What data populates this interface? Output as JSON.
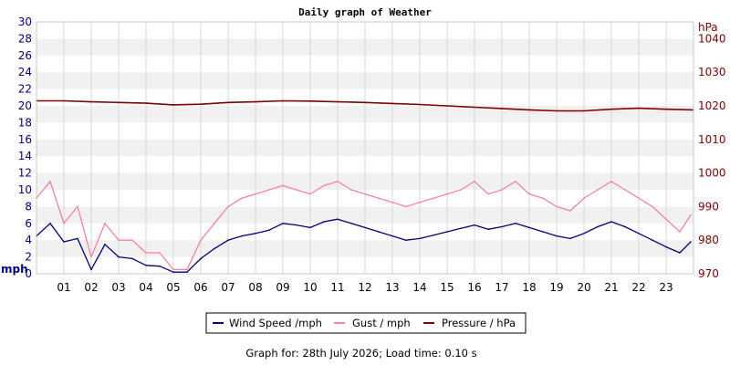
{
  "chart_data": {
    "type": "line",
    "title": "Daily graph of Weather",
    "footer": "Graph for: 28th July 2026; Load time: 0.10 s",
    "y_left": {
      "label": "mph",
      "range": [
        0,
        30
      ],
      "ticks": [
        0,
        2,
        4,
        6,
        8,
        10,
        12,
        14,
        16,
        18,
        20,
        22,
        24,
        26,
        28,
        30
      ]
    },
    "y_right": {
      "label": "hPa",
      "range": [
        970,
        1045
      ],
      "ticks": [
        970,
        980,
        990,
        1000,
        1010,
        1020,
        1030,
        1040
      ]
    },
    "x": {
      "range": [
        0,
        24
      ],
      "ticks": [
        "01",
        "02",
        "03",
        "04",
        "05",
        "06",
        "07",
        "08",
        "09",
        "10",
        "11",
        "12",
        "13",
        "14",
        "15",
        "16",
        "17",
        "18",
        "19",
        "20",
        "21",
        "22",
        "23"
      ]
    },
    "grid": true,
    "legend_position": "bottom",
    "colors": {
      "wind": "#000080",
      "gust": "#f77fa8",
      "pressure": "#800000",
      "left_axis": "#000080",
      "right_axis": "#800000",
      "band": "#f1f1f1"
    },
    "series": [
      {
        "name": "Wind Speed /mph",
        "axis": "left",
        "x": [
          0,
          0.5,
          1,
          1.5,
          2,
          2.5,
          3,
          3.5,
          4,
          4.5,
          5,
          5.5,
          6,
          6.5,
          7,
          7.5,
          8,
          8.5,
          9,
          9.5,
          10,
          10.5,
          11,
          11.5,
          12,
          12.5,
          13,
          13.5,
          14,
          14.5,
          15,
          15.5,
          16,
          16.5,
          17,
          17.5,
          18,
          18.5,
          19,
          19.5,
          20,
          20.5,
          21,
          21.5,
          22,
          22.5,
          23,
          23.5,
          23.9
        ],
        "values": [
          4.5,
          6,
          3.8,
          4.2,
          0.5,
          3.5,
          2,
          1.8,
          1,
          0.9,
          0.2,
          0.2,
          1.8,
          3,
          4,
          4.5,
          4.8,
          5.2,
          6,
          5.8,
          5.5,
          6.2,
          6.5,
          6,
          5.5,
          5,
          4.5,
          4,
          4.2,
          4.6,
          5,
          5.4,
          5.8,
          5.3,
          5.6,
          6,
          5.5,
          5,
          4.5,
          4.2,
          4.8,
          5.6,
          6.2,
          5.6,
          4.8,
          4,
          3.2,
          2.5,
          3.8
        ]
      },
      {
        "name": "Gust / mph",
        "axis": "left",
        "x": [
          0,
          0.5,
          1,
          1.5,
          2,
          2.5,
          3,
          3.5,
          4,
          4.5,
          5,
          5.5,
          6,
          6.5,
          7,
          7.5,
          8,
          8.5,
          9,
          9.5,
          10,
          10.5,
          11,
          11.5,
          12,
          12.5,
          13,
          13.5,
          14,
          14.5,
          15,
          15.5,
          16,
          16.5,
          17,
          17.5,
          18,
          18.5,
          19,
          19.5,
          20,
          20.5,
          21,
          21.5,
          22,
          22.5,
          23,
          23.5,
          23.9
        ],
        "values": [
          9,
          11,
          6,
          8,
          2,
          6,
          4,
          4,
          2.5,
          2.5,
          0.5,
          0.5,
          4,
          6,
          8,
          9,
          9.5,
          10,
          10.5,
          10,
          9.5,
          10.5,
          11,
          10,
          9.5,
          9,
          8.5,
          8,
          8.5,
          9,
          9.5,
          10,
          11,
          9.5,
          10,
          11,
          9.5,
          9,
          8,
          7.5,
          9,
          10,
          11,
          10,
          9,
          8,
          6.5,
          5,
          7
        ]
      },
      {
        "name": "Pressure / hPa",
        "axis": "right",
        "x": [
          0,
          1,
          2,
          3,
          4,
          5,
          6,
          7,
          8,
          9,
          10,
          11,
          12,
          13,
          14,
          15,
          16,
          17,
          18,
          19,
          20,
          21,
          22,
          23,
          24
        ],
        "values": [
          1021.5,
          1021.5,
          1021.2,
          1021,
          1020.8,
          1020.3,
          1020.5,
          1021,
          1021.2,
          1021.5,
          1021.4,
          1021.2,
          1021,
          1020.7,
          1020.4,
          1020,
          1019.6,
          1019.2,
          1018.8,
          1018.5,
          1018.5,
          1019,
          1019.3,
          1019,
          1018.8
        ]
      }
    ]
  }
}
